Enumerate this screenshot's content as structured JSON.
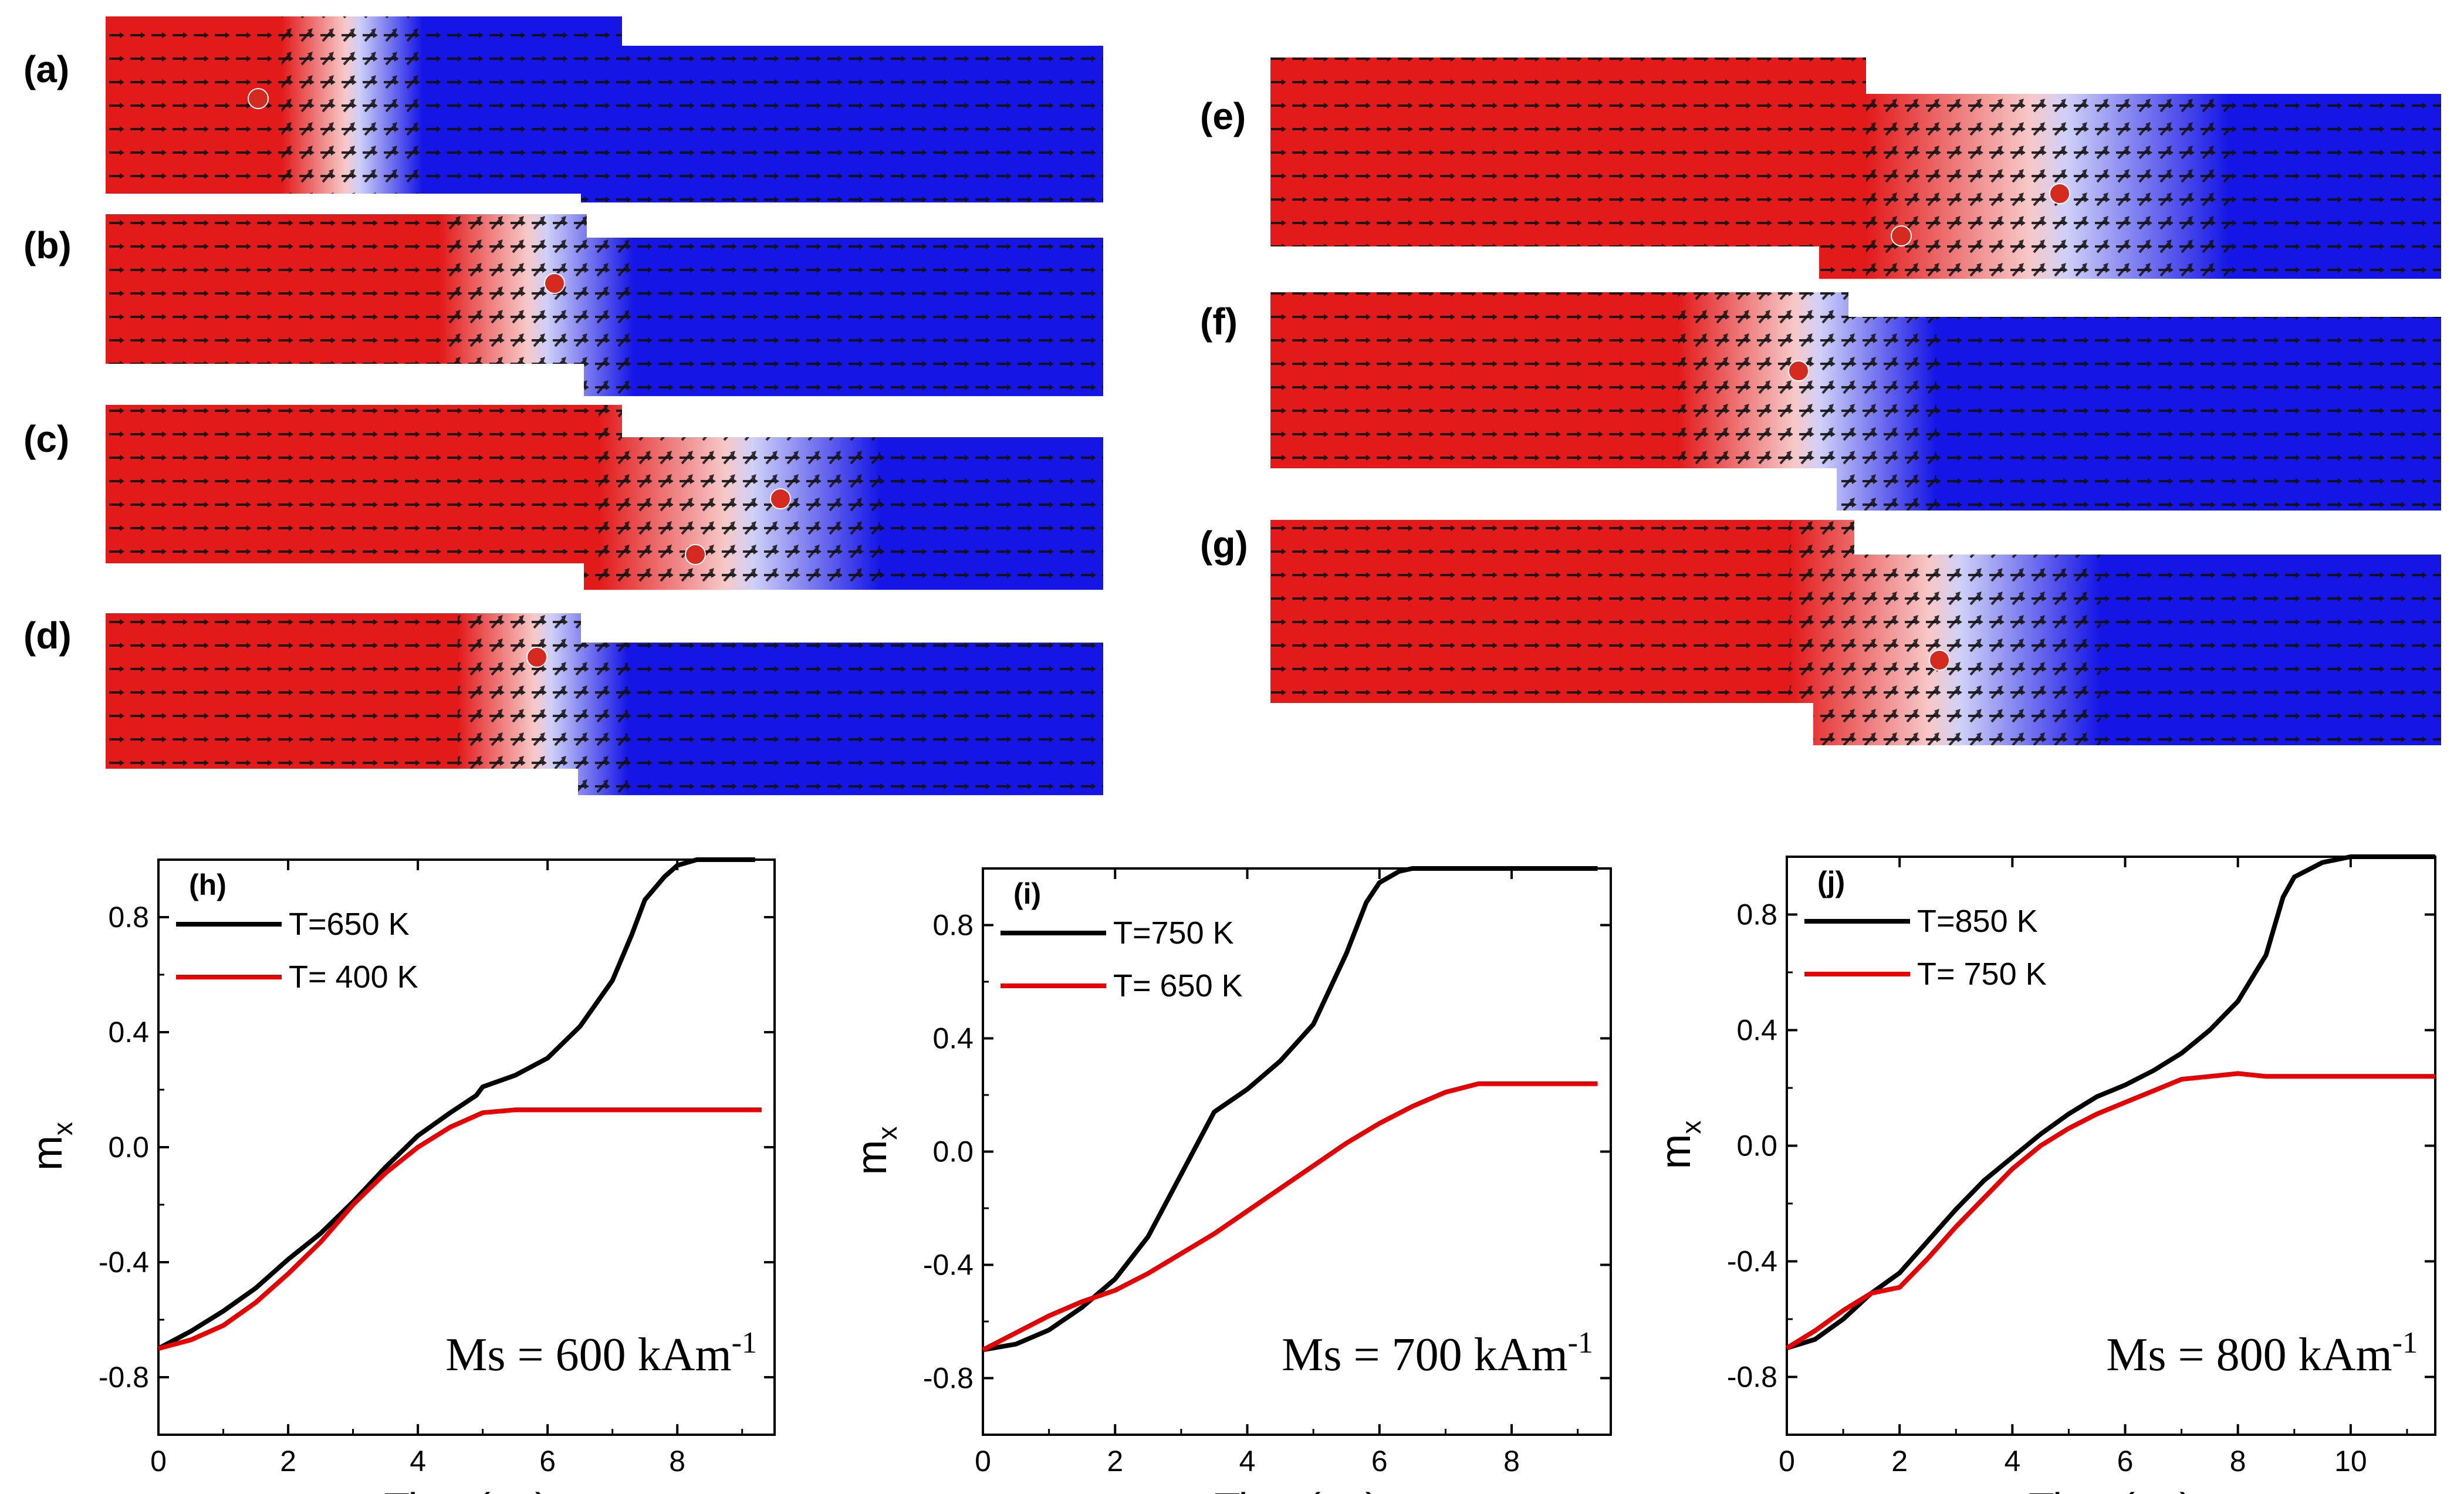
{
  "panels": [
    {
      "label": "(a)"
    },
    {
      "label": "(b)"
    },
    {
      "label": "(c)"
    },
    {
      "label": "(d)"
    },
    {
      "label": "(e)"
    },
    {
      "label": "(f)"
    },
    {
      "label": "(g)"
    }
  ],
  "colors": {
    "up": "#e31a1a",
    "down": "#1515e6",
    "core": "#d42a1f",
    "curve_high": "#000000",
    "curve_low": "#e60000"
  },
  "chart_data": [
    {
      "type": "line",
      "panel_label": "(h)",
      "xlabel": "Time(ns)",
      "ylabel_main": "m",
      "ylabel_sub": "x",
      "xlim": [
        0,
        9.5
      ],
      "ylim": [
        -1.0,
        1.0
      ],
      "xticks": [
        0,
        2,
        4,
        6,
        8
      ],
      "yticks": [
        -0.8,
        -0.4,
        0.0,
        0.4,
        0.8
      ],
      "annotation_main": "Ms = 600 kAm",
      "annotation_sup": "-1",
      "series": [
        {
          "name": "T=650 K",
          "color": "#000000",
          "x": [
            0,
            0.5,
            1,
            1.5,
            2,
            2.5,
            3,
            3.5,
            4,
            4.5,
            4.9,
            5,
            5.5,
            6,
            6.5,
            7,
            7.3,
            7.5,
            7.8,
            8,
            8.3,
            8.6,
            9.2
          ],
          "y": [
            -0.7,
            -0.64,
            -0.57,
            -0.49,
            -0.39,
            -0.3,
            -0.19,
            -0.07,
            0.04,
            0.12,
            0.18,
            0.21,
            0.25,
            0.31,
            0.42,
            0.58,
            0.74,
            0.86,
            0.94,
            0.98,
            1.0,
            1.0,
            1.0
          ]
        },
        {
          "name": "T= 400 K",
          "color": "#e60000",
          "x": [
            0,
            0.5,
            1,
            1.5,
            2,
            2.5,
            3,
            3.5,
            4,
            4.5,
            5,
            5.5,
            6,
            7,
            8,
            9.3
          ],
          "y": [
            -0.7,
            -0.67,
            -0.62,
            -0.54,
            -0.44,
            -0.33,
            -0.2,
            -0.09,
            0.0,
            0.07,
            0.12,
            0.13,
            0.13,
            0.13,
            0.13,
            0.13
          ]
        }
      ]
    },
    {
      "type": "line",
      "panel_label": "(i)",
      "xlabel": "Time(ns)",
      "ylabel_main": "m",
      "ylabel_sub": "x",
      "xlim": [
        0,
        9.5
      ],
      "ylim": [
        -1.0,
        1.0
      ],
      "xticks": [
        0,
        2,
        4,
        6,
        8
      ],
      "yticks": [
        -0.8,
        -0.4,
        0.0,
        0.4,
        0.8
      ],
      "annotation_main": "Ms = 700 kAm",
      "annotation_sup": "-1",
      "series": [
        {
          "name": "T=750 K",
          "color": "#000000",
          "x": [
            0,
            0.5,
            1,
            1.5,
            2,
            2.5,
            3,
            3.5,
            4,
            4.5,
            5,
            5.5,
            5.8,
            6,
            6.3,
            6.5,
            7,
            8,
            9.3
          ],
          "y": [
            -0.7,
            -0.68,
            -0.63,
            -0.55,
            -0.45,
            -0.3,
            -0.08,
            0.14,
            0.22,
            0.32,
            0.45,
            0.7,
            0.88,
            0.95,
            0.99,
            1.0,
            1.0,
            1.0,
            1.0
          ]
        },
        {
          "name": "T= 650 K",
          "color": "#e60000",
          "x": [
            0,
            0.5,
            1,
            1.5,
            2,
            2.5,
            3,
            3.5,
            4,
            4.5,
            5,
            5.5,
            6,
            6.5,
            7,
            7.5,
            8,
            9.3
          ],
          "y": [
            -0.7,
            -0.64,
            -0.58,
            -0.53,
            -0.49,
            -0.43,
            -0.36,
            -0.29,
            -0.21,
            -0.13,
            -0.05,
            0.03,
            0.1,
            0.16,
            0.21,
            0.24,
            0.24,
            0.24
          ]
        }
      ]
    },
    {
      "type": "line",
      "panel_label": "(j)",
      "xlabel": "Time(ns)",
      "ylabel_main": "m",
      "ylabel_sub": "x",
      "xlim": [
        0,
        11.5
      ],
      "ylim": [
        -1.0,
        1.0
      ],
      "xticks": [
        0,
        2,
        4,
        6,
        8,
        10
      ],
      "yticks": [
        -0.8,
        -0.4,
        0.0,
        0.4,
        0.8
      ],
      "annotation_main": "Ms = 800 kAm",
      "annotation_sup": "-1",
      "series": [
        {
          "name": "T=850 K",
          "color": "#000000",
          "x": [
            0,
            0.5,
            1,
            1.5,
            2,
            2.5,
            3,
            3.5,
            4,
            4.5,
            5,
            5.5,
            6,
            6.5,
            7,
            7.5,
            8,
            8.5,
            8.8,
            9,
            9.5,
            10,
            11.5
          ],
          "y": [
            -0.7,
            -0.67,
            -0.6,
            -0.51,
            -0.44,
            -0.33,
            -0.22,
            -0.12,
            -0.04,
            0.04,
            0.11,
            0.17,
            0.21,
            0.26,
            0.32,
            0.4,
            0.5,
            0.66,
            0.86,
            0.93,
            0.98,
            1.0,
            1.0
          ]
        },
        {
          "name": "T= 750 K",
          "color": "#e60000",
          "x": [
            0,
            0.5,
            1,
            1.5,
            2,
            2.5,
            3,
            3.5,
            4,
            4.5,
            5,
            5.5,
            6,
            6.5,
            7,
            7.5,
            8,
            8.5,
            9,
            11.5
          ],
          "y": [
            -0.7,
            -0.64,
            -0.57,
            -0.51,
            -0.49,
            -0.39,
            -0.28,
            -0.18,
            -0.08,
            0.0,
            0.06,
            0.11,
            0.15,
            0.19,
            0.23,
            0.24,
            0.25,
            0.24,
            0.24,
            0.24
          ]
        }
      ]
    }
  ]
}
